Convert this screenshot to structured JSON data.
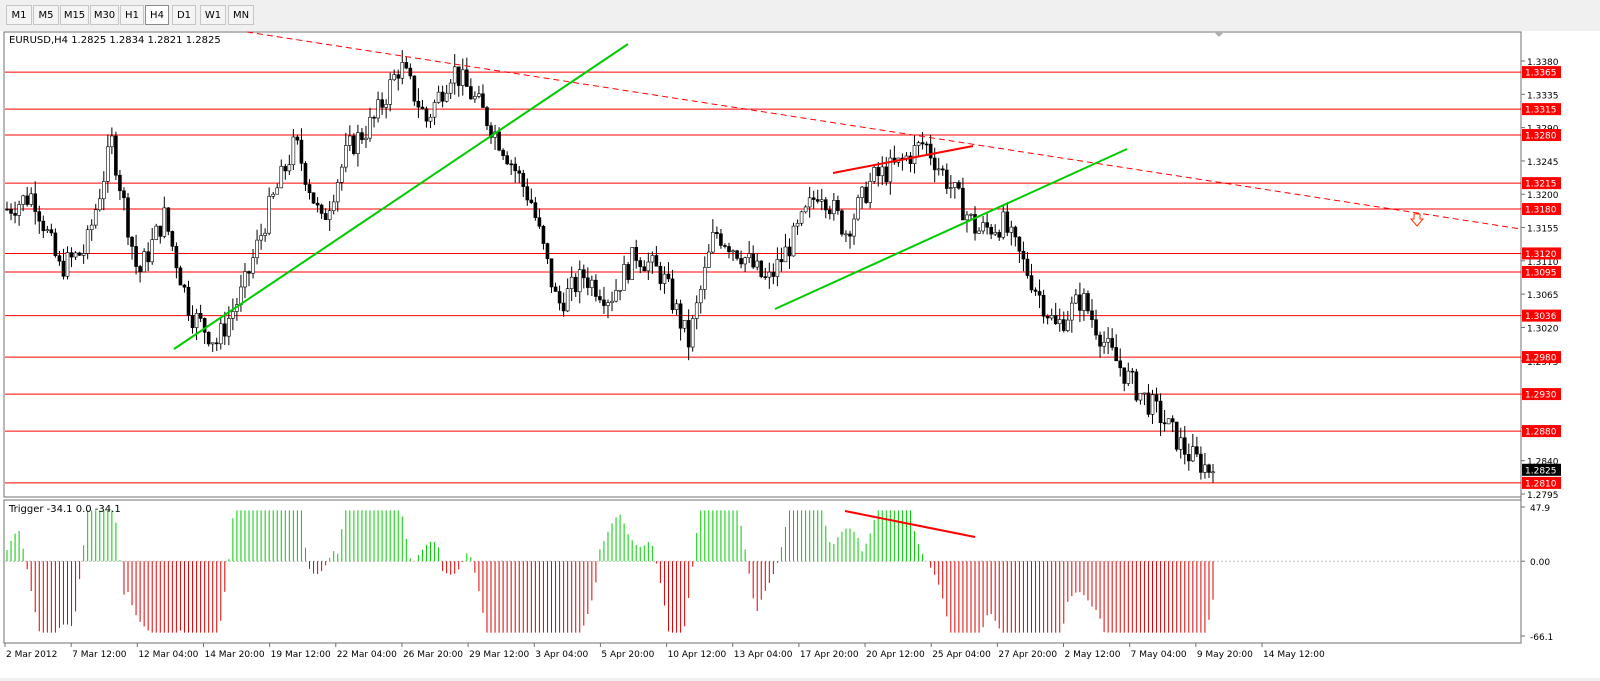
{
  "toolbar": {
    "timeframes": [
      "M1",
      "M5",
      "M15",
      "M30",
      "H1",
      "H4",
      "D1",
      "W1",
      "MN"
    ],
    "active": "H4"
  },
  "main_chart": {
    "title": "EURUSD,H4  1.2825 1.2834 1.2821 1.2825",
    "price_labels": [
      "1.3380",
      "1.3335",
      "1.3290",
      "1.3245",
      "1.3200",
      "1.3155",
      "1.3110",
      "1.3065",
      "1.3020",
      "1.2975",
      "1.2930",
      "1.2885",
      "1.2840",
      "1.2795"
    ],
    "levels": [
      {
        "value": 1.3365,
        "label": "1.3365"
      },
      {
        "value": 1.3315,
        "label": "1.3315"
      },
      {
        "value": 1.328,
        "label": "1.3280"
      },
      {
        "value": 1.3215,
        "label": "1.3215"
      },
      {
        "value": 1.318,
        "label": "1.3180"
      },
      {
        "value": 1.312,
        "label": "1.3120"
      },
      {
        "value": 1.3095,
        "label": "1.3095"
      },
      {
        "value": 1.3036,
        "label": "1.3036"
      },
      {
        "value": 1.298,
        "label": "1.2980"
      },
      {
        "value": 1.293,
        "label": "1.2930"
      },
      {
        "value": 1.288,
        "label": "1.2880"
      },
      {
        "value": 1.281,
        "label": "1.2810"
      }
    ],
    "current_price": {
      "value": 1.2825,
      "label": "1.2825"
    },
    "colors": {
      "level": "#ff0000",
      "trend": "#00cc00",
      "bull": "#00b000",
      "bear": "#e00000"
    }
  },
  "indicator": {
    "title": "Trigger -34.1 0.0 -34.1",
    "scale_labels": [
      "47.9",
      "0.00",
      "-66.1"
    ],
    "colors": {
      "positive": "#00cc00",
      "negative": "#dd0000"
    }
  },
  "time_axis": {
    "labels": [
      "2 Mar 2012",
      "7 Mar 12:00",
      "12 Mar 04:00",
      "14 Mar 20:00",
      "19 Mar 12:00",
      "22 Mar 04:00",
      "26 Mar 20:00",
      "29 Mar 12:00",
      "3 Apr 04:00",
      "5 Apr 20:00",
      "10 Apr 12:00",
      "13 Apr 04:00",
      "17 Apr 20:00",
      "20 Apr 12:00",
      "25 Apr 04:00",
      "27 Apr 20:00",
      "2 May 12:00",
      "7 May 04:00",
      "9 May 20:00",
      "14 May 12:00"
    ]
  },
  "chart_data": {
    "type": "candlestick",
    "symbol": "EURUSD",
    "timeframe": "H4",
    "last_bar": {
      "open": 1.2825,
      "high": 1.2834,
      "low": 1.2821,
      "close": 1.2825
    },
    "y_range": [
      1.2795,
      1.338
    ],
    "close_path": [
      1.318,
      1.32,
      1.31,
      1.3125,
      1.327,
      1.309,
      1.317,
      1.304,
      1.3,
      1.307,
      1.318,
      1.327,
      1.316,
      1.326,
      1.33,
      1.3375,
      1.33,
      1.337,
      1.332,
      1.326,
      1.319,
      1.305,
      1.309,
      1.306,
      1.312,
      1.309,
      1.3,
      1.315,
      1.312,
      1.308,
      1.314,
      1.321,
      1.315,
      1.322,
      1.324,
      1.327,
      1.321,
      1.315,
      1.316,
      1.309,
      1.302,
      1.306,
      1.299,
      1.294,
      1.29,
      1.285,
      1.2825
    ]
  }
}
